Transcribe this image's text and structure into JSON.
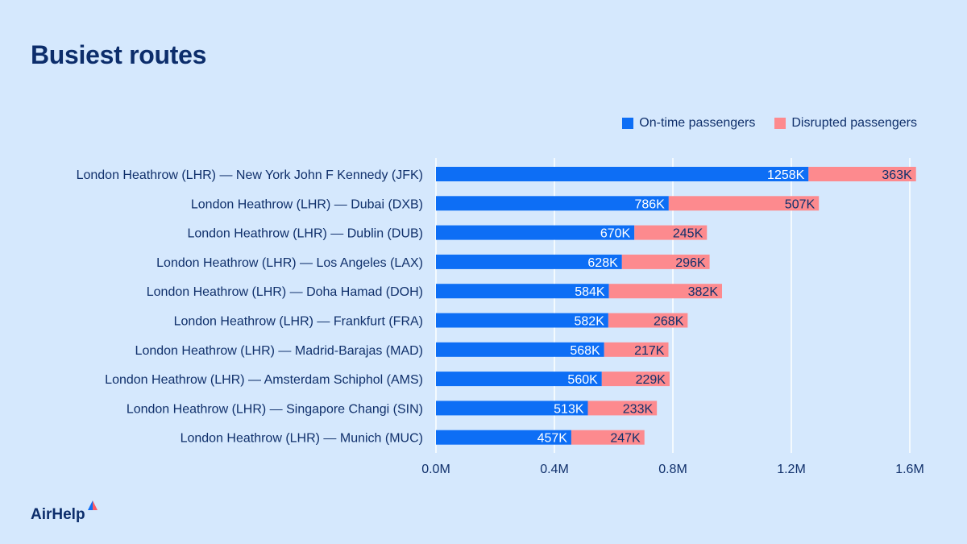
{
  "title": "Busiest routes",
  "brand": "AirHelp",
  "colors": {
    "ontime": "#0d6ef5",
    "disrupted": "#fd8a8e",
    "text": "#10306b",
    "grid": "#ffffff",
    "bg": "#d5e8fd"
  },
  "chart_data": {
    "type": "bar",
    "orientation": "horizontal",
    "stacked": true,
    "title": "Busiest routes",
    "xlabel": "",
    "ylabel": "",
    "xlim": [
      0,
      1.6
    ],
    "x_unit": "M",
    "x_ticks": [
      "0.0M",
      "0.4M",
      "0.8M",
      "1.2M",
      "1.6M"
    ],
    "x_tick_values": [
      0,
      0.4,
      0.8,
      1.2,
      1.6
    ],
    "grid": true,
    "legend_position": "top-right",
    "categories": [
      "London Heathrow (LHR) — New York John F Kennedy (JFK)",
      "London Heathrow (LHR) — Dubai (DXB)",
      "London Heathrow (LHR) — Dublin (DUB)",
      "London Heathrow (LHR) — Los Angeles (LAX)",
      "London Heathrow (LHR) — Doha Hamad (DOH)",
      "London Heathrow (LHR) — Frankfurt (FRA)",
      "London Heathrow (LHR) — Madrid-Barajas (MAD)",
      "London Heathrow (LHR) — Amsterdam Schiphol (AMS)",
      "London Heathrow (LHR) — Singapore Changi (SIN)",
      "London Heathrow (LHR) — Munich (MUC)"
    ],
    "series": [
      {
        "name": "On-time passengers",
        "key": "ontime",
        "values_k": [
          1258,
          786,
          670,
          628,
          584,
          582,
          568,
          560,
          513,
          457
        ],
        "labels": [
          "1258K",
          "786K",
          "670K",
          "628K",
          "584K",
          "582K",
          "568K",
          "560K",
          "513K",
          "457K"
        ]
      },
      {
        "name": "Disrupted passengers",
        "key": "disrupted",
        "values_k": [
          363,
          507,
          245,
          296,
          382,
          268,
          217,
          229,
          233,
          247
        ],
        "labels": [
          "363K",
          "507K",
          "245K",
          "296K",
          "382K",
          "268K",
          "217K",
          "229K",
          "233K",
          "247K"
        ]
      }
    ]
  }
}
